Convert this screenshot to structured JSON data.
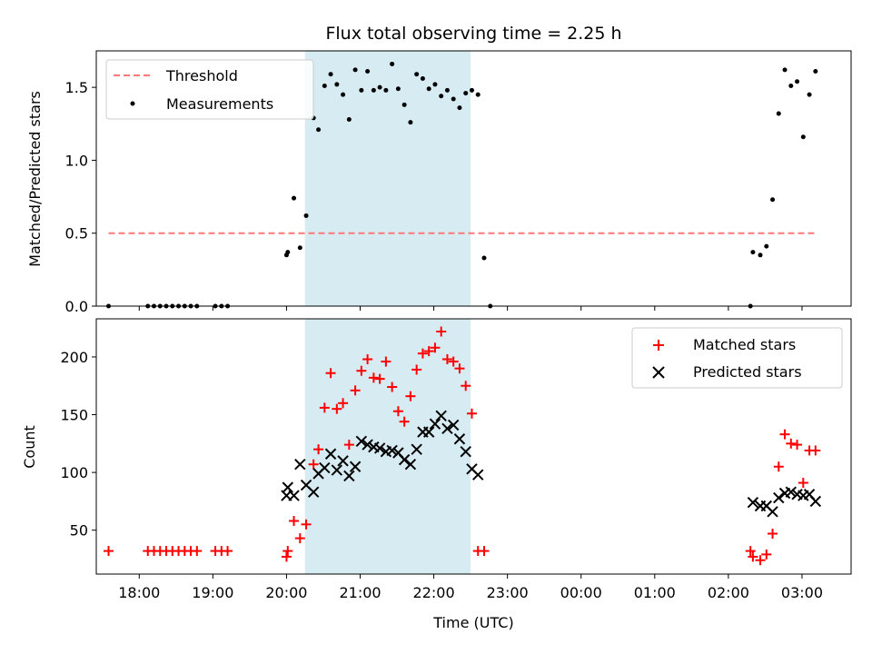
{
  "chart_data": [
    {
      "type": "scatter",
      "title": "Flux total observing time = 2.25 h",
      "xlabel": "",
      "ylabel": "Matched/Predicted stars",
      "ylim": [
        0,
        1.75
      ],
      "yticks": [
        0.0,
        0.5,
        1.0,
        1.5
      ],
      "ytick_labels": [
        "0.0",
        "0.5",
        "1.0",
        "1.5"
      ],
      "xlim": [
        "17:25",
        "03:40"
      ],
      "grid": false,
      "legend_position": "upper-left",
      "shaded_interval": {
        "start": "20:15",
        "end": "22:30",
        "color": "#add8e6"
      },
      "threshold": {
        "name": "Threshold",
        "value": 0.5,
        "x_start": "17:35",
        "x_end": "03:10",
        "color": "#ff7777"
      },
      "series": [
        {
          "name": "Measurements",
          "color": "#000000",
          "points": [
            [
              "17:35",
              0.0
            ],
            [
              "18:07",
              0.0
            ],
            [
              "18:12",
              0.0
            ],
            [
              "18:17",
              0.0
            ],
            [
              "18:22",
              0.0
            ],
            [
              "18:27",
              0.0
            ],
            [
              "18:32",
              0.0
            ],
            [
              "18:37",
              0.0
            ],
            [
              "18:42",
              0.0
            ],
            [
              "18:47",
              0.0
            ],
            [
              "19:02",
              0.0
            ],
            [
              "19:07",
              0.0
            ],
            [
              "19:12",
              0.0
            ],
            [
              "20:00",
              0.35
            ],
            [
              "20:01",
              0.37
            ],
            [
              "20:06",
              0.74
            ],
            [
              "20:11",
              0.4
            ],
            [
              "20:16",
              0.62
            ],
            [
              "20:22",
              1.29
            ],
            [
              "20:26",
              1.21
            ],
            [
              "20:31",
              1.51
            ],
            [
              "20:36",
              1.59
            ],
            [
              "20:41",
              1.52
            ],
            [
              "20:46",
              1.45
            ],
            [
              "20:51",
              1.28
            ],
            [
              "20:56",
              1.62
            ],
            [
              "21:01",
              1.48
            ],
            [
              "21:06",
              1.61
            ],
            [
              "21:11",
              1.48
            ],
            [
              "21:16",
              1.5
            ],
            [
              "21:21",
              1.48
            ],
            [
              "21:26",
              1.66
            ],
            [
              "21:31",
              1.49
            ],
            [
              "21:36",
              1.38
            ],
            [
              "21:41",
              1.26
            ],
            [
              "21:46",
              1.59
            ],
            [
              "21:51",
              1.56
            ],
            [
              "21:56",
              1.49
            ],
            [
              "22:01",
              1.52
            ],
            [
              "22:06",
              1.44
            ],
            [
              "22:11",
              1.48
            ],
            [
              "22:16",
              1.42
            ],
            [
              "22:21",
              1.36
            ],
            [
              "22:26",
              1.46
            ],
            [
              "22:31",
              1.48
            ],
            [
              "22:36",
              1.45
            ],
            [
              "22:41",
              0.33
            ],
            [
              "22:46",
              0.0
            ],
            [
              "02:18",
              0.0
            ],
            [
              "02:20",
              0.37
            ],
            [
              "02:26",
              0.35
            ],
            [
              "02:31",
              0.41
            ],
            [
              "02:36",
              0.73
            ],
            [
              "02:41",
              1.32
            ],
            [
              "02:46",
              1.62
            ],
            [
              "02:51",
              1.51
            ],
            [
              "02:56",
              1.54
            ],
            [
              "03:01",
              1.16
            ],
            [
              "03:06",
              1.45
            ],
            [
              "03:11",
              1.61
            ]
          ]
        }
      ],
      "legend": [
        "Threshold",
        "Measurements"
      ]
    },
    {
      "type": "scatter",
      "title": "",
      "xlabel": "Time (UTC)",
      "ylabel": "Count",
      "ylim": [
        12,
        233
      ],
      "yticks": [
        50,
        100,
        150,
        200
      ],
      "ytick_labels": [
        "50",
        "100",
        "150",
        "200"
      ],
      "xlim": [
        "17:25",
        "03:40"
      ],
      "xticks": [
        "18:00",
        "19:00",
        "20:00",
        "21:00",
        "22:00",
        "23:00",
        "00:00",
        "01:00",
        "02:00",
        "03:00"
      ],
      "grid": false,
      "legend_position": "upper-right",
      "shaded_interval": {
        "start": "20:15",
        "end": "22:30",
        "color": "#add8e6"
      },
      "series": [
        {
          "name": "Matched stars",
          "marker": "+",
          "color": "#ff0000",
          "points": [
            [
              "17:35",
              32
            ],
            [
              "18:07",
              32
            ],
            [
              "18:12",
              32
            ],
            [
              "18:17",
              32
            ],
            [
              "18:22",
              32
            ],
            [
              "18:27",
              32
            ],
            [
              "18:32",
              32
            ],
            [
              "18:37",
              32
            ],
            [
              "18:42",
              32
            ],
            [
              "18:47",
              32
            ],
            [
              "19:02",
              32
            ],
            [
              "19:07",
              32
            ],
            [
              "19:12",
              32
            ],
            [
              "20:00",
              27
            ],
            [
              "20:01",
              32
            ],
            [
              "20:06",
              58
            ],
            [
              "20:11",
              43
            ],
            [
              "20:16",
              55
            ],
            [
              "20:22",
              107
            ],
            [
              "20:26",
              120
            ],
            [
              "20:31",
              156
            ],
            [
              "20:36",
              186
            ],
            [
              "20:41",
              155
            ],
            [
              "20:46",
              160
            ],
            [
              "20:51",
              124
            ],
            [
              "20:56",
              171
            ],
            [
              "21:01",
              188
            ],
            [
              "21:06",
              198
            ],
            [
              "21:11",
              182
            ],
            [
              "21:16",
              181
            ],
            [
              "21:21",
              196
            ],
            [
              "21:26",
              174
            ],
            [
              "21:31",
              153
            ],
            [
              "21:36",
              144
            ],
            [
              "21:41",
              166
            ],
            [
              "21:46",
              189
            ],
            [
              "21:51",
              203
            ],
            [
              "21:56",
              205
            ],
            [
              "22:01",
              208
            ],
            [
              "22:06",
              222
            ],
            [
              "22:11",
              198
            ],
            [
              "22:16",
              196
            ],
            [
              "22:21",
              190
            ],
            [
              "22:26",
              175
            ],
            [
              "22:31",
              151
            ],
            [
              "22:36",
              32
            ],
            [
              "22:41",
              32
            ],
            [
              "02:18",
              32
            ],
            [
              "02:20",
              27
            ],
            [
              "02:26",
              24
            ],
            [
              "02:31",
              29
            ],
            [
              "02:36",
              47
            ],
            [
              "02:41",
              105
            ],
            [
              "02:46",
              133
            ],
            [
              "02:51",
              125
            ],
            [
              "02:56",
              124
            ],
            [
              "03:01",
              91
            ],
            [
              "03:06",
              119
            ],
            [
              "03:11",
              119
            ]
          ]
        },
        {
          "name": "Predicted stars",
          "marker": "x",
          "color": "#000000",
          "points": [
            [
              "20:00",
              80
            ],
            [
              "20:01",
              87
            ],
            [
              "20:06",
              80
            ],
            [
              "20:11",
              107
            ],
            [
              "20:16",
              89
            ],
            [
              "20:22",
              83
            ],
            [
              "20:26",
              99
            ],
            [
              "20:31",
              104
            ],
            [
              "20:36",
              116
            ],
            [
              "20:41",
              102
            ],
            [
              "20:46",
              110
            ],
            [
              "20:51",
              97
            ],
            [
              "20:56",
              105
            ],
            [
              "21:01",
              127
            ],
            [
              "21:06",
              124
            ],
            [
              "21:11",
              122
            ],
            [
              "21:16",
              121
            ],
            [
              "21:21",
              118
            ],
            [
              "21:26",
              119
            ],
            [
              "21:31",
              117
            ],
            [
              "21:36",
              111
            ],
            [
              "21:41",
              107
            ],
            [
              "21:46",
              120
            ],
            [
              "21:51",
              135
            ],
            [
              "21:56",
              135
            ],
            [
              "22:01",
              142
            ],
            [
              "22:06",
              149
            ],
            [
              "22:11",
              138
            ],
            [
              "22:16",
              141
            ],
            [
              "22:21",
              129
            ],
            [
              "22:26",
              118
            ],
            [
              "22:31",
              103
            ],
            [
              "22:36",
              98
            ],
            [
              "02:20",
              74
            ],
            [
              "02:26",
              71
            ],
            [
              "02:31",
              71
            ],
            [
              "02:36",
              66
            ],
            [
              "02:41",
              78
            ],
            [
              "02:46",
              82
            ],
            [
              "02:51",
              83
            ],
            [
              "02:56",
              81
            ],
            [
              "03:01",
              80
            ],
            [
              "03:06",
              81
            ],
            [
              "03:11",
              75
            ]
          ]
        }
      ],
      "legend": [
        "Matched stars",
        "Predicted stars"
      ]
    }
  ]
}
